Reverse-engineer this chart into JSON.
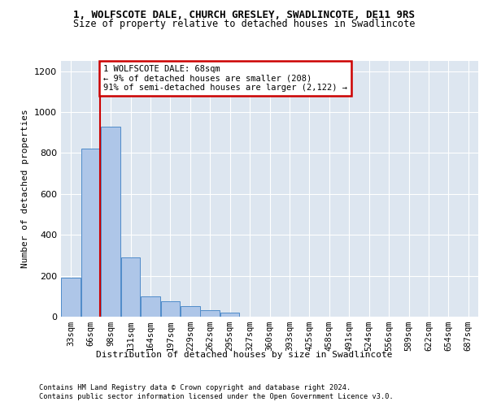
{
  "title_line1": "1, WOLFSCOTE DALE, CHURCH GRESLEY, SWADLINCOTE, DE11 9RS",
  "title_line2": "Size of property relative to detached houses in Swadlincote",
  "xlabel": "Distribution of detached houses by size in Swadlincote",
  "ylabel": "Number of detached properties",
  "bin_labels": [
    "33sqm",
    "66sqm",
    "98sqm",
    "131sqm",
    "164sqm",
    "197sqm",
    "229sqm",
    "262sqm",
    "295sqm",
    "327sqm",
    "360sqm",
    "393sqm",
    "425sqm",
    "458sqm",
    "491sqm",
    "524sqm",
    "556sqm",
    "589sqm",
    "622sqm",
    "654sqm",
    "687sqm"
  ],
  "bar_heights": [
    190,
    820,
    930,
    290,
    100,
    75,
    50,
    30,
    20,
    0,
    0,
    0,
    0,
    0,
    0,
    0,
    0,
    0,
    0,
    0,
    0
  ],
  "bar_color": "#aec6e8",
  "bar_edge_color": "#4f8bc9",
  "ylim": [
    0,
    1250
  ],
  "yticks": [
    0,
    200,
    400,
    600,
    800,
    1000,
    1200
  ],
  "annotation_text": "1 WOLFSCOTE DALE: 68sqm\n← 9% of detached houses are smaller (208)\n91% of semi-detached houses are larger (2,122) →",
  "annotation_box_color": "#ffffff",
  "annotation_box_edge_color": "#cc0000",
  "bg_color": "#dde6f0",
  "footnote1": "Contains HM Land Registry data © Crown copyright and database right 2024.",
  "footnote2": "Contains public sector information licensed under the Open Government Licence v3.0.",
  "vline_x": 1.47,
  "figsize": [
    6.0,
    5.0
  ],
  "dpi": 100
}
